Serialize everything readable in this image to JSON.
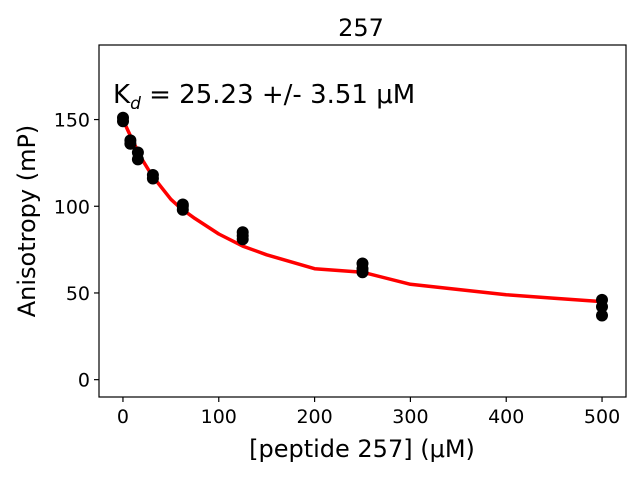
{
  "chart_data": {
    "type": "scatter",
    "title": "257",
    "xlabel": "[peptide 257] (μM)",
    "ylabel": "Anisotropy (mP)",
    "annotation": {
      "k_symbol": "K",
      "k_subscript": "d",
      "value_text": " = 25.23 +/- 3.51 ",
      "unit_text": "μM"
    },
    "xlim": [
      -25,
      525
    ],
    "ylim": [
      -10,
      193
    ],
    "xticks": [
      0,
      100,
      200,
      300,
      400,
      500
    ],
    "yticks": [
      0,
      50,
      100,
      150
    ],
    "grid": false,
    "point_color": "#000000",
    "fit_color": "#ff0000",
    "series": [
      {
        "type": "scatter",
        "x": [
          0,
          0,
          7.8,
          7.8,
          15.6,
          15.6,
          31.25,
          31.25,
          62.5,
          62.5,
          62.5,
          125,
          125,
          125,
          250,
          250,
          250,
          500,
          500,
          500
        ],
        "y": [
          151,
          149,
          138,
          136,
          131,
          127,
          118,
          116,
          101,
          98,
          100,
          85,
          81,
          83,
          67,
          62,
          64,
          46,
          42,
          37
        ]
      },
      {
        "type": "line",
        "x": [
          0,
          5,
          10,
          20,
          30,
          40,
          50,
          60,
          75,
          100,
          125,
          150,
          200,
          250,
          300,
          350,
          400,
          450,
          500
        ],
        "y": [
          150,
          144,
          138,
          127,
          118,
          111,
          104,
          99,
          93,
          84,
          77,
          72,
          64,
          62,
          55,
          52,
          49,
          47,
          45
        ]
      }
    ]
  }
}
